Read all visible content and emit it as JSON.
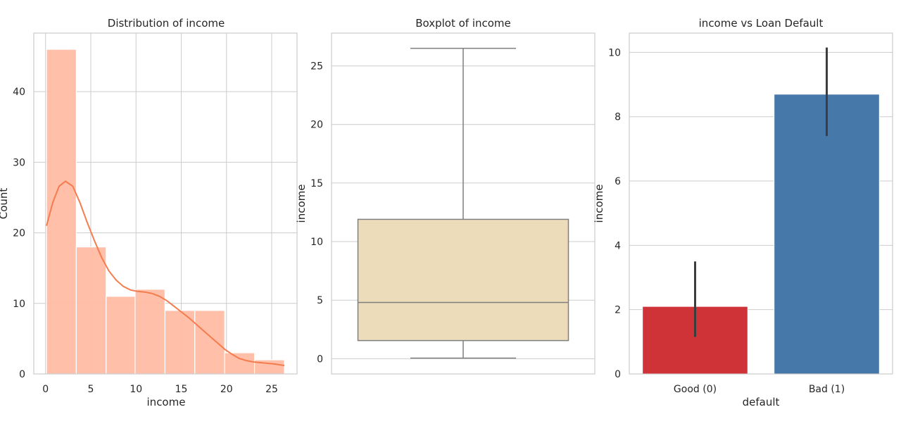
{
  "chart_data": [
    {
      "type": "histogram",
      "title": "Distribution of income",
      "xlabel": "income",
      "ylabel": "Count",
      "xlim": [
        -1.3,
        27.8
      ],
      "ylim": [
        0,
        48.3
      ],
      "xticks": [
        0,
        5,
        10,
        15,
        20,
        25
      ],
      "yticks": [
        0,
        10,
        20,
        30,
        40
      ],
      "bins": [
        {
          "x0": 0.1,
          "x1": 3.4,
          "count": 46
        },
        {
          "x0": 3.4,
          "x1": 6.7,
          "count": 18
        },
        {
          "x0": 6.7,
          "x1": 9.9,
          "count": 11
        },
        {
          "x0": 9.9,
          "x1": 13.2,
          "count": 12
        },
        {
          "x0": 13.2,
          "x1": 16.5,
          "count": 9
        },
        {
          "x0": 16.5,
          "x1": 19.8,
          "count": 9
        },
        {
          "x0": 19.8,
          "x1": 23.1,
          "count": 3
        },
        {
          "x0": 23.1,
          "x1": 26.4,
          "count": 2
        }
      ],
      "kde": [
        [
          0.1,
          21
        ],
        [
          0.8,
          24.3
        ],
        [
          1.5,
          26.6
        ],
        [
          2.2,
          27.3
        ],
        [
          3.0,
          26.6
        ],
        [
          3.8,
          24.3
        ],
        [
          4.6,
          21.5
        ],
        [
          5.4,
          18.9
        ],
        [
          6.2,
          16.5
        ],
        [
          7.0,
          14.6
        ],
        [
          7.8,
          13.3
        ],
        [
          8.6,
          12.4
        ],
        [
          9.4,
          11.9
        ],
        [
          10.2,
          11.7
        ],
        [
          11.0,
          11.6
        ],
        [
          11.8,
          11.4
        ],
        [
          12.6,
          11.0
        ],
        [
          13.4,
          10.4
        ],
        [
          14.2,
          9.6
        ],
        [
          15.0,
          8.8
        ],
        [
          15.8,
          8.0
        ],
        [
          16.6,
          7.1
        ],
        [
          17.4,
          6.2
        ],
        [
          18.2,
          5.3
        ],
        [
          19.0,
          4.4
        ],
        [
          19.8,
          3.5
        ],
        [
          20.6,
          2.8
        ],
        [
          21.4,
          2.2
        ],
        [
          22.2,
          1.9
        ],
        [
          23.0,
          1.7
        ],
        [
          23.8,
          1.6
        ],
        [
          24.6,
          1.5
        ],
        [
          25.4,
          1.4
        ],
        [
          26.4,
          1.2
        ]
      ],
      "bar_color": "#ffbca3",
      "line_color": "#f47c4f"
    },
    {
      "type": "boxplot",
      "title": "Boxplot of income",
      "ylabel": "income",
      "ylim": [
        -1.3,
        27.8
      ],
      "yticks": [
        0,
        5,
        10,
        15,
        20,
        25
      ],
      "stats": {
        "min": 0.05,
        "q1": 1.55,
        "median": 4.8,
        "q3": 11.9,
        "max": 26.5
      },
      "box_color": "#ecdcba",
      "line_color": "#7f7f7f"
    },
    {
      "type": "bar",
      "title": "income vs Loan Default",
      "xlabel": "default",
      "ylabel": "income",
      "ylim": [
        0,
        10.6
      ],
      "yticks": [
        0,
        2,
        4,
        6,
        8,
        10
      ],
      "categories": [
        "Good (0)",
        "Bad (1)"
      ],
      "values": [
        2.1,
        8.7
      ],
      "ci": [
        [
          1.15,
          3.5
        ],
        [
          7.4,
          10.15
        ]
      ],
      "colors": [
        "#d03337",
        "#4679a9"
      ]
    }
  ]
}
